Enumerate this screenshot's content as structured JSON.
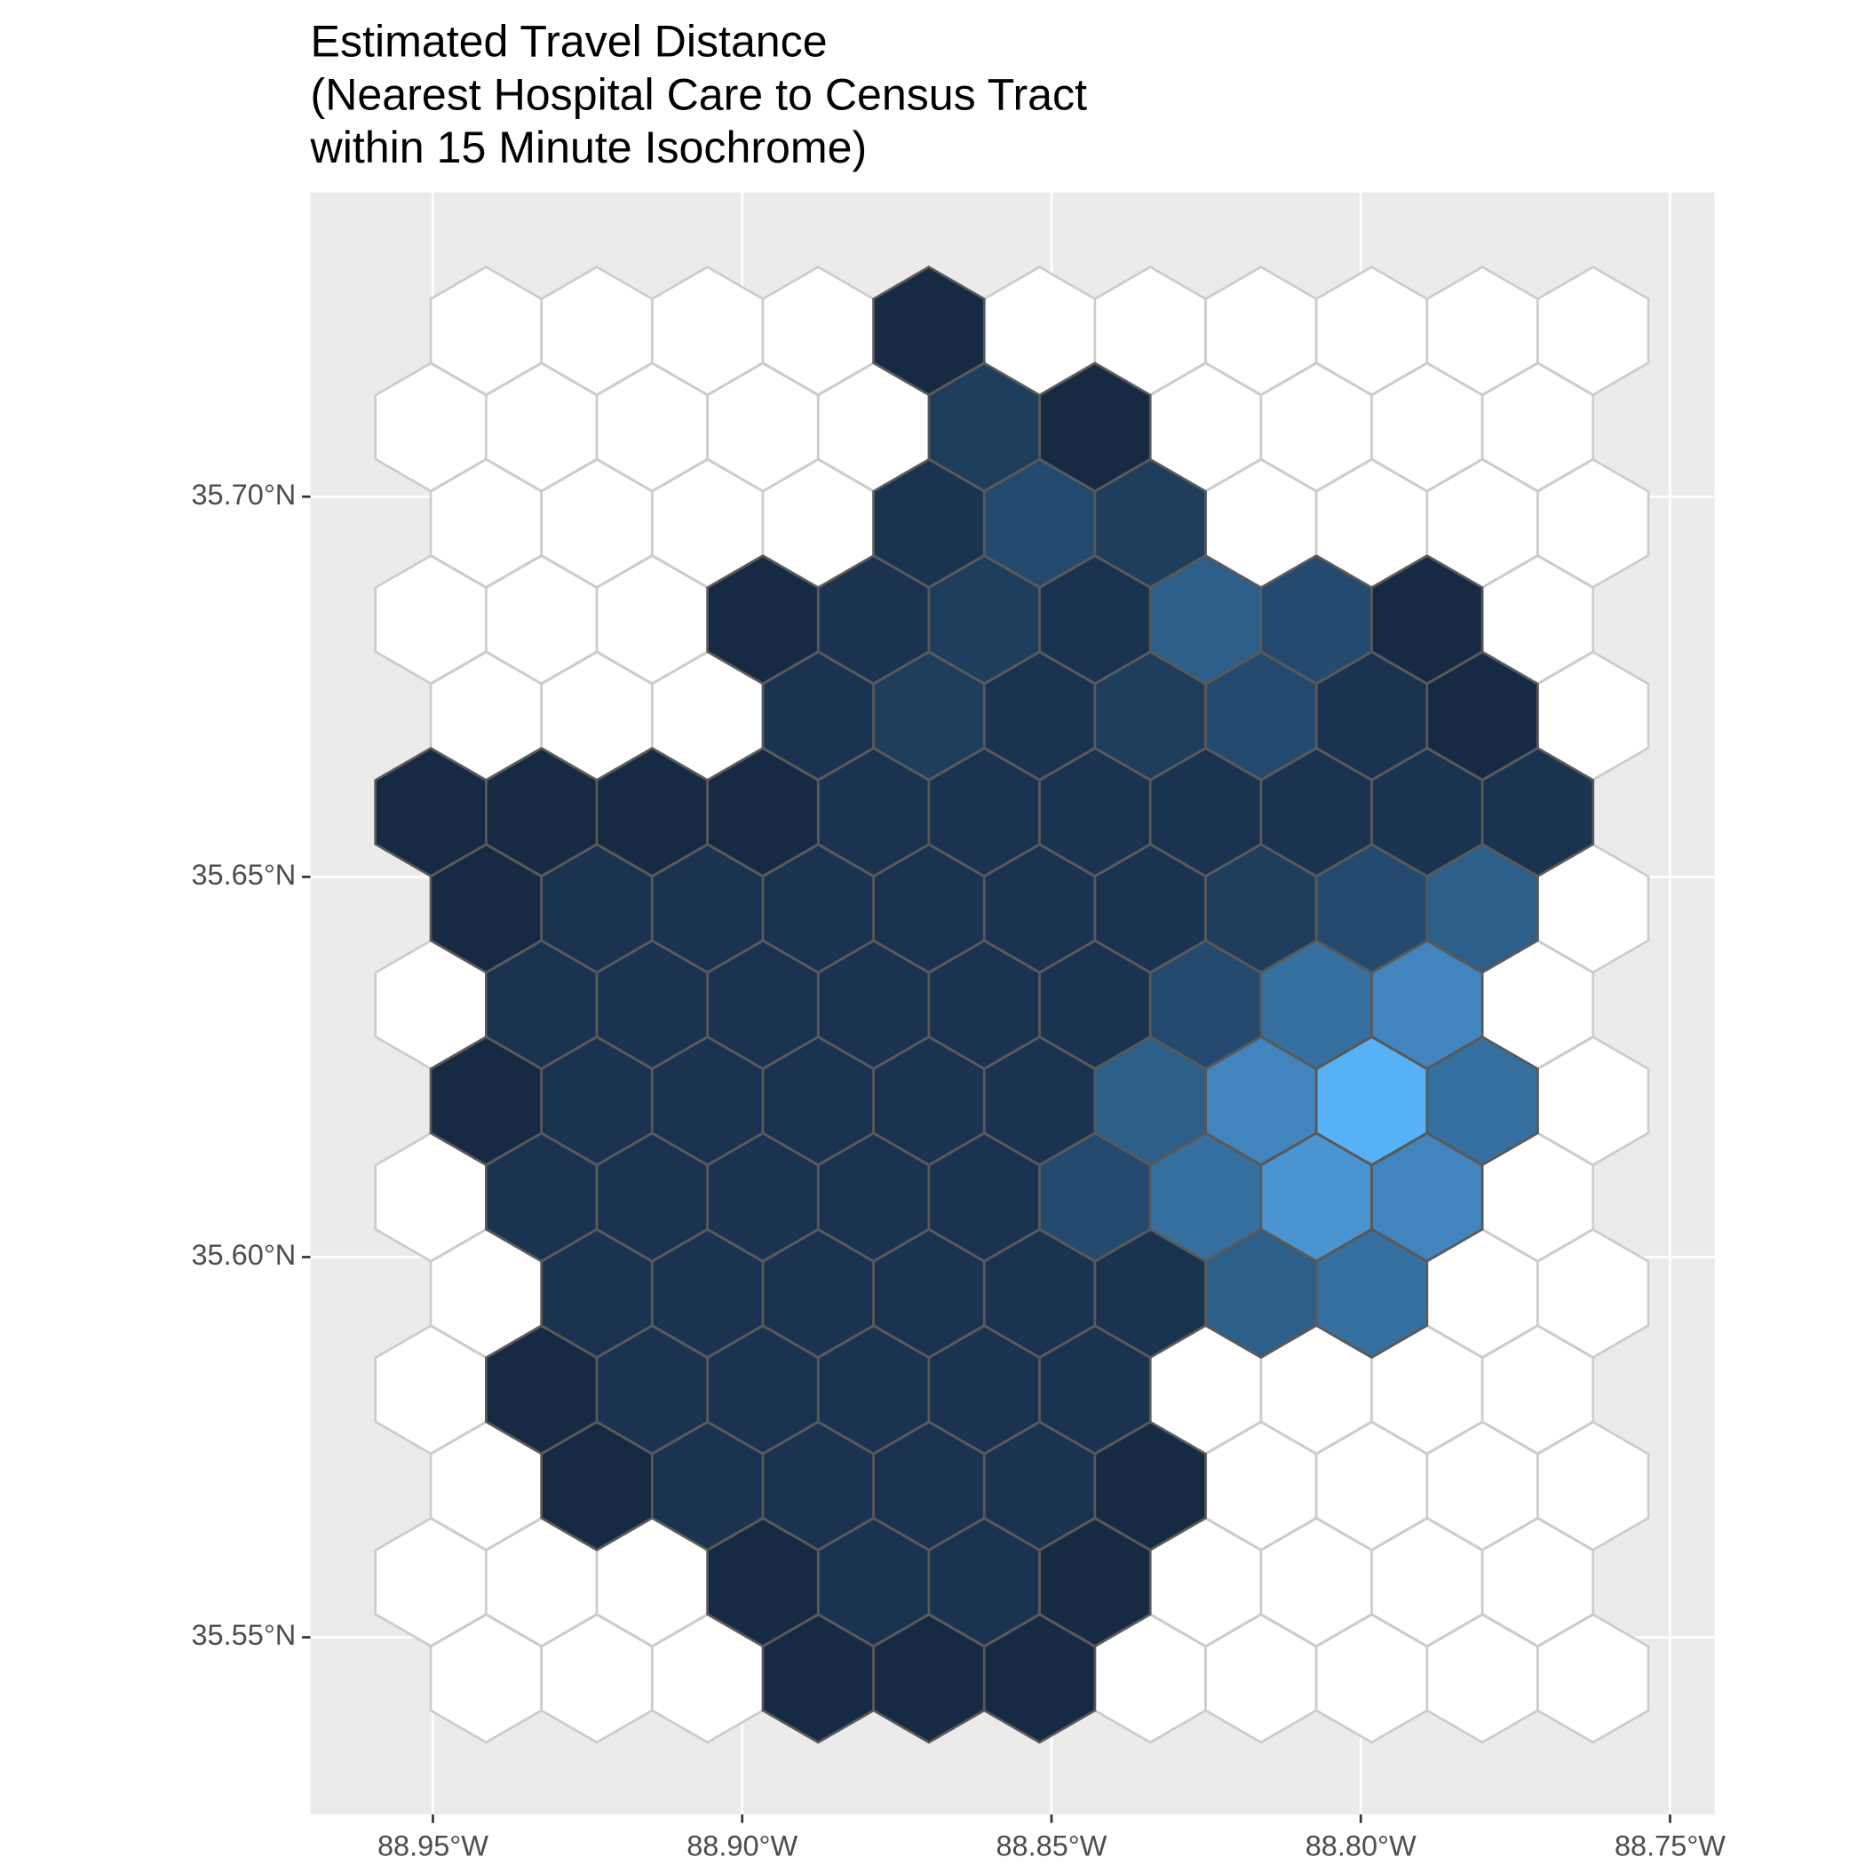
{
  "chart_data": {
    "type": "hexmap",
    "title": [
      "Estimated Travel Distance",
      "(Nearest Hospital Care to Census Tract",
      "within 15 Minute Isochrome)"
    ],
    "xlim": [
      -88.9698,
      -88.7428
    ],
    "ylim": [
      35.5267,
      35.74
    ],
    "xticks": [
      {
        "value": -88.95,
        "label": "88.95°W"
      },
      {
        "value": -88.9,
        "label": "88.90°W"
      },
      {
        "value": -88.85,
        "label": "88.85°W"
      },
      {
        "value": -88.8,
        "label": "88.80°W"
      },
      {
        "value": -88.75,
        "label": "88.75°W"
      }
    ],
    "yticks": [
      {
        "value": 35.55,
        "label": "35.55°N"
      },
      {
        "value": 35.6,
        "label": "35.60°N"
      },
      {
        "value": 35.65,
        "label": "35.65°N"
      },
      {
        "value": 35.7,
        "label": "35.70°N"
      }
    ],
    "grid": true,
    "panel_color": "#ebebeb",
    "empty_fill": "#ffffff",
    "empty_stroke": "#cccccc",
    "cell_stroke": "#595959",
    "cells": [
      [
        null,
        null,
        null,
        null,
        "#172a44",
        null,
        null,
        null,
        null,
        null,
        null
      ],
      [
        null,
        null,
        null,
        null,
        null,
        "#1f3d5d",
        "#172a44",
        null,
        null,
        null,
        null
      ],
      [
        null,
        null,
        null,
        null,
        "#1a3350",
        "#244a70",
        "#1f3d5d",
        null,
        null,
        null,
        null
      ],
      [
        null,
        null,
        null,
        "#172a44",
        "#1a3350",
        "#1f3d5d",
        "#1a3350",
        "#2d5f8b",
        "#244a70",
        "#172a44",
        null
      ],
      [
        null,
        null,
        null,
        "#1a3350",
        "#1f3d5d",
        "#1a3350",
        "#1f3d5d",
        "#244a70",
        "#1a3350",
        "#172a44",
        null
      ],
      [
        "#172a44",
        "#172a44",
        "#172a44",
        "#172a44",
        "#1a3350",
        "#1a3350",
        "#1a3350",
        "#1a3350",
        "#1a3350",
        "#1a3350",
        "#1a3350"
      ],
      [
        "#172a44",
        "#1a3350",
        "#1a3350",
        "#1a3350",
        "#1a3350",
        "#1a3350",
        "#1a3350",
        "#1f3d5d",
        "#244a70",
        "#2d5f8b",
        null
      ],
      [
        null,
        "#1a3350",
        "#1a3350",
        "#1a3350",
        "#1a3350",
        "#1a3350",
        "#1a3350",
        "#244a70",
        "#3670a0",
        "#4284bd",
        null
      ],
      [
        "#172a44",
        "#1a3350",
        "#1a3350",
        "#1a3350",
        "#1a3350",
        "#1a3350",
        "#2d5f8b",
        "#4284bd",
        "#56b1f7",
        "#3670a0",
        null
      ],
      [
        null,
        "#1a3350",
        "#1a3350",
        "#1a3350",
        "#1a3350",
        "#1a3350",
        "#244a70",
        "#3670a0",
        "#4a94d2",
        "#4284bd",
        null
      ],
      [
        null,
        "#1a3350",
        "#1a3350",
        "#1a3350",
        "#1a3350",
        "#1a3350",
        "#1a3350",
        "#2d5f8b",
        "#3670a0",
        null,
        null
      ],
      [
        null,
        "#172a44",
        "#1a3350",
        "#1a3350",
        "#1a3350",
        "#1a3350",
        "#1a3350",
        null,
        null,
        null,
        null
      ],
      [
        null,
        "#172a44",
        "#1a3350",
        "#1a3350",
        "#1a3350",
        "#1a3350",
        "#172a44",
        null,
        null,
        null,
        null
      ],
      [
        null,
        null,
        null,
        "#172a44",
        "#1a3350",
        "#1a3350",
        "#172a44",
        null,
        null,
        null,
        null
      ],
      [
        null,
        null,
        null,
        "#172a44",
        "#172a44",
        "#172a44",
        null,
        null,
        null,
        null,
        null
      ]
    ]
  }
}
